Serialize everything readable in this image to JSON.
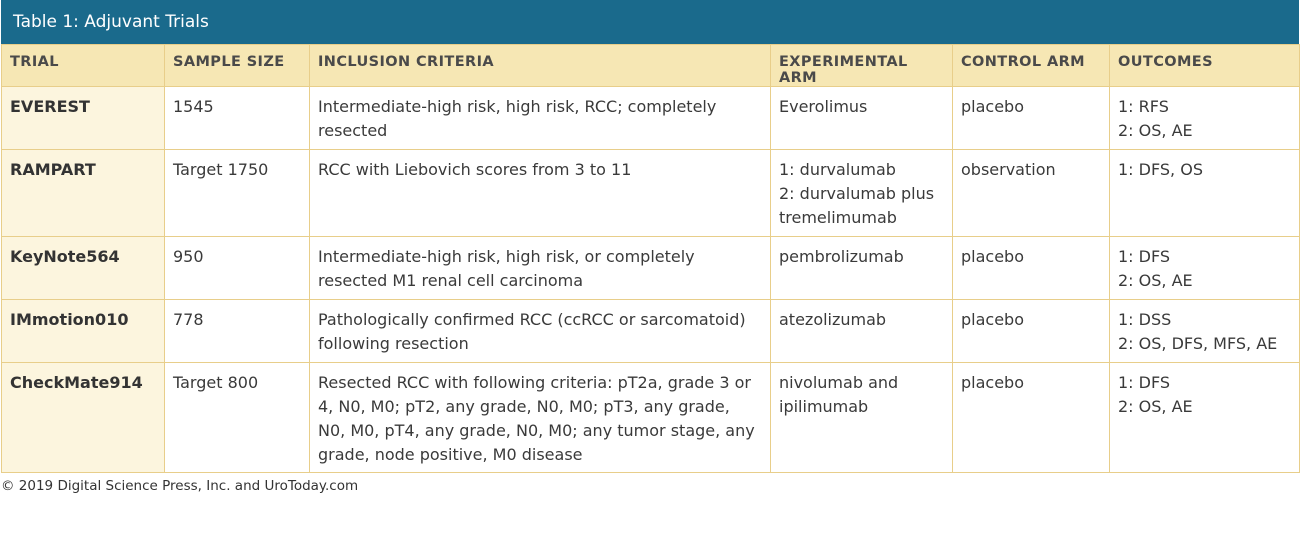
{
  "table": {
    "title": "Table 1: Adjuvant Trials",
    "headers": [
      "TRIAL",
      "SAMPLE SIZE",
      "INCLUSION CRITERIA",
      "EXPERIMENTAL ARM",
      "CONTROL ARM",
      "OUTCOMES"
    ],
    "rows": [
      {
        "trial": "EVEREST",
        "sample_size": "1545",
        "inclusion": "Intermediate-high risk, high risk, RCC; completely resected",
        "experimental": "Everolimus",
        "control": "placebo",
        "outcomes": "1: RFS\n2: OS, AE"
      },
      {
        "trial": "RAMPART",
        "sample_size": "Target 1750",
        "inclusion": "RCC with Liebovich scores from 3 to 11",
        "experimental": "1: durvalumab\n2: durvalumab plus tremelimumab",
        "control": "observation",
        "outcomes": "1: DFS, OS"
      },
      {
        "trial": "KeyNote564",
        "sample_size": "950",
        "inclusion": "Intermediate-high risk, high risk, or completely resected M1 renal cell carcinoma",
        "experimental": "pembrolizumab",
        "control": "placebo",
        "outcomes": "1: DFS\n2: OS, AE"
      },
      {
        "trial": "IMmotion010",
        "sample_size": "778",
        "inclusion": "Pathologically confirmed RCC (ccRCC or sarcomatoid) following resection",
        "experimental": "atezolizumab",
        "control": "placebo",
        "outcomes": "1: DSS\n2: OS, DFS, MFS, AE"
      },
      {
        "trial": "CheckMate914",
        "sample_size": "Target 800",
        "inclusion": "Resected RCC with following criteria: pT2a, grade 3 or 4, N0, M0; pT2, any grade, N0, M0; pT3, any grade, N0, M0, pT4, any grade, N0, M0; any tumor stage, any grade, node positive, M0 disease",
        "experimental": "nivolumab and ipilimumab",
        "control": "placebo",
        "outcomes": "1: DFS\n2: OS, AE"
      }
    ]
  },
  "footer": {
    "copyright": "© 2019 Digital Science Press, Inc. and UroToday.com"
  },
  "colors": {
    "title_bar": "#1a6a8c",
    "header_bg": "#f6e7b4",
    "trial_col_bg": "#fcf5de",
    "border": "#e8ce8a"
  }
}
